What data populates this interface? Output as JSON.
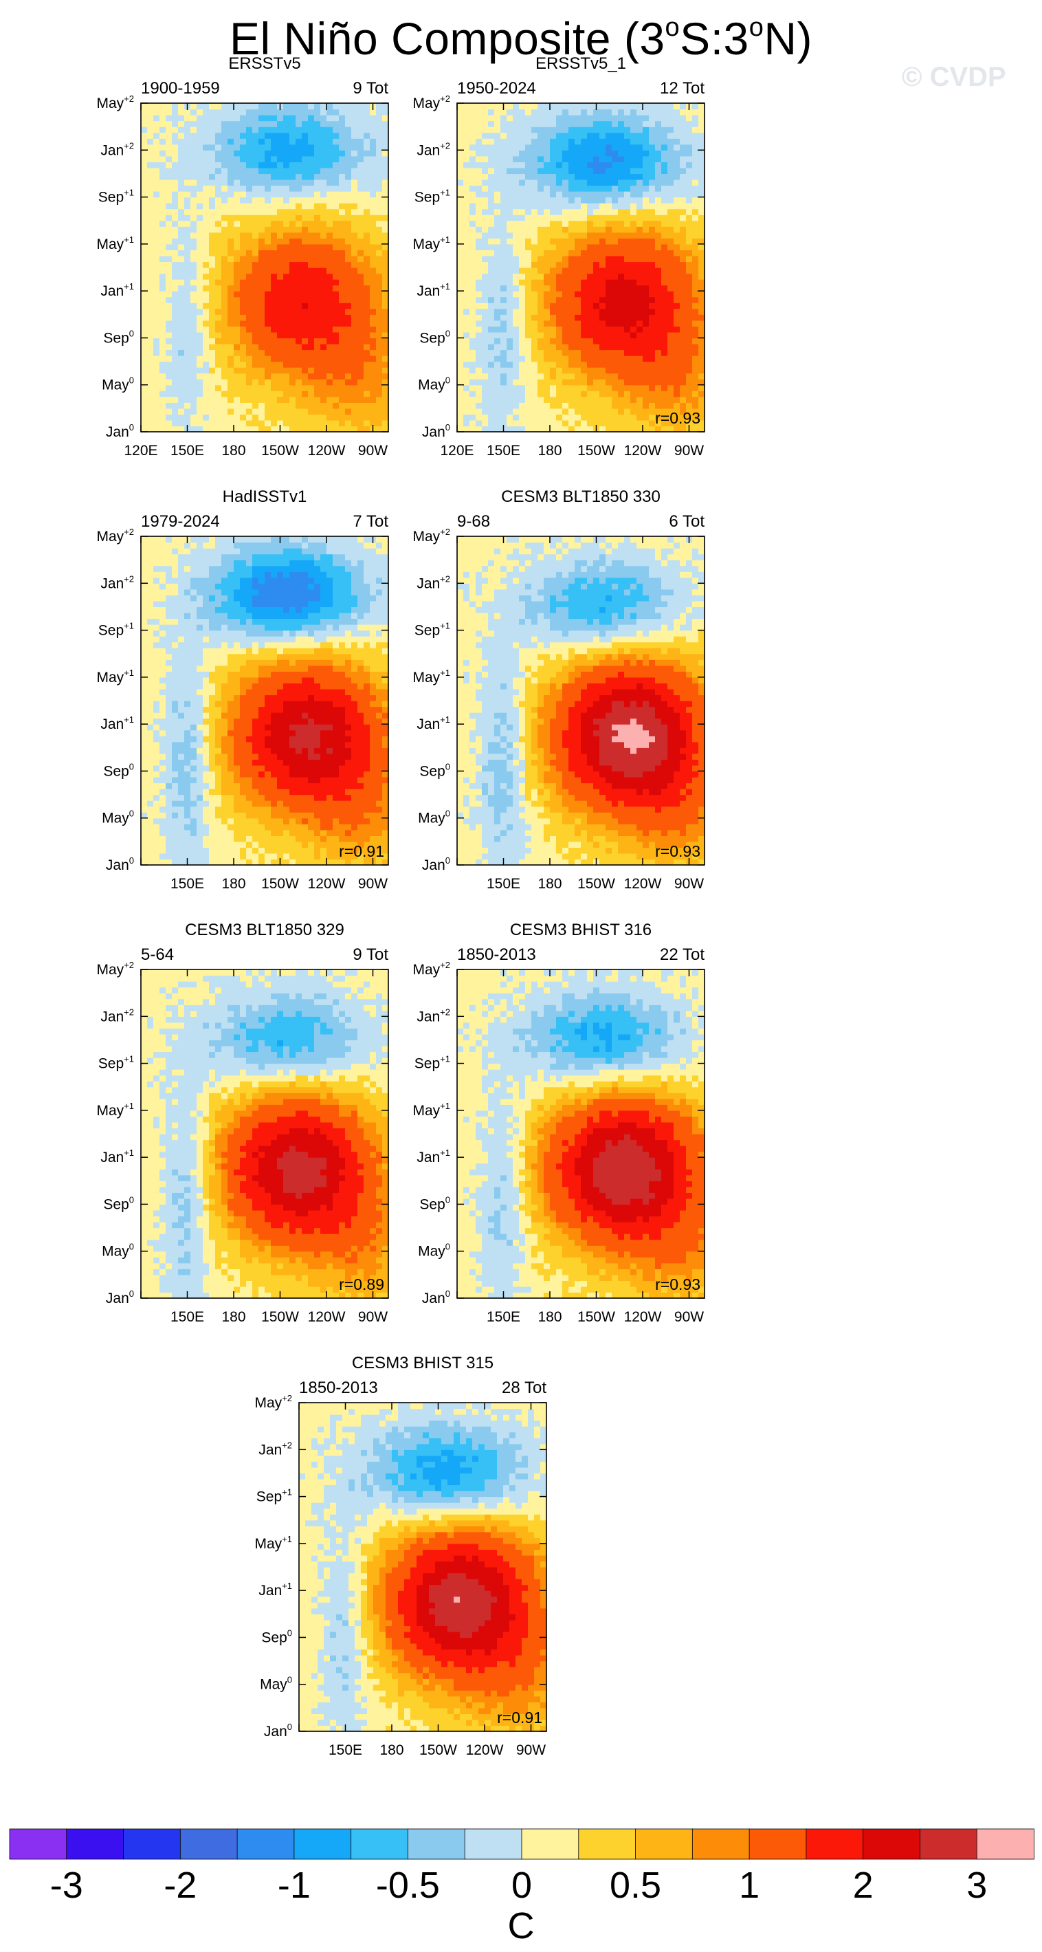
{
  "title_parts": {
    "prefix": "El Niño Composite (3",
    "deg1": "o",
    "mid": "S:3",
    "deg2": "o",
    "suffix": "N)"
  },
  "watermark": "© CVDP",
  "chart_data": {
    "type": "heatmap",
    "title": "El Niño Composite (3°S:3°N)",
    "units": "C",
    "x_axis": {
      "labels": [
        "120E",
        "150E",
        "180",
        "150W",
        "120W",
        "90W"
      ],
      "lon_deg_east": [
        120,
        150,
        180,
        210,
        240,
        270
      ],
      "range": [
        120,
        280
      ]
    },
    "y_axis": {
      "labels": [
        "Jan⁰",
        "May⁰",
        "Sep⁰",
        "Jan⁺¹",
        "May⁺¹",
        "Sep⁺¹",
        "Jan⁺²",
        "May⁺²"
      ],
      "range_months": [
        0,
        28
      ]
    },
    "colorbar": {
      "levels": [
        -3,
        -2.5,
        -2,
        -1.5,
        -1,
        -0.75,
        -0.5,
        -0.25,
        0,
        0.25,
        0.5,
        0.75,
        1,
        1.5,
        2,
        2.5,
        3
      ],
      "tick_labels": [
        "-3",
        "-2",
        "-1",
        "-0.5",
        "0",
        "0.5",
        "1",
        "2",
        "3"
      ],
      "tick_levels": [
        -3,
        -2,
        -1,
        -0.5,
        0,
        0.5,
        1,
        2,
        3
      ],
      "colors": [
        "#8a30f2",
        "#3a10f0",
        "#2436f0",
        "#3f6ce0",
        "#2e8cf0",
        "#16a8f8",
        "#36c0f5",
        "#8acaef",
        "#bfe0f3",
        "#fff39e",
        "#fdd22c",
        "#fdb414",
        "#fd8c08",
        "#fd5a08",
        "#fc1808",
        "#dc0808",
        "#cc2c2c",
        "#fcb0b0"
      ]
    },
    "panels": [
      {
        "name": "ERSSTv5",
        "period": "1900-1959",
        "count": "9 Tot",
        "corr": "",
        "peak": 1.8,
        "peak_lon": 225,
        "peak_month": 11,
        "cold": -1.0,
        "cold_month": 24,
        "wp": -0.4,
        "show_x": true,
        "show_120e": true
      },
      {
        "name": "ERSSTv5_1",
        "period": "1950-2024",
        "count": "12 Tot",
        "corr": "r=0.93",
        "peak": 2.1,
        "peak_lon": 228,
        "peak_month": 11,
        "cold": -1.2,
        "cold_month": 23,
        "wp": -0.5,
        "show_x": true,
        "show_120e": true
      },
      {
        "name": "HadISSTv1",
        "period": "1979-2024",
        "count": "7 Tot",
        "corr": "r=0.91",
        "peak": 2.5,
        "peak_lon": 228,
        "peak_month": 11,
        "cold": -1.4,
        "cold_month": 23,
        "wp": -0.6,
        "show_x": true,
        "show_120e": false
      },
      {
        "name": "CESM3 BLT1850 330",
        "period": "9-68",
        "count": "6 Tot",
        "corr": "r=0.93",
        "peak": 3.0,
        "peak_lon": 232,
        "peak_month": 11,
        "cold": -0.9,
        "cold_month": 22,
        "wp": -0.6,
        "show_x": true,
        "show_120e": false
      },
      {
        "name": "CESM3 BLT1850 329",
        "period": "5-64",
        "count": "9 Tot",
        "corr": "r=0.89",
        "peak": 2.6,
        "peak_lon": 222,
        "peak_month": 11,
        "cold": -0.9,
        "cold_month": 22,
        "wp": -0.6,
        "show_x": true,
        "show_120e": false
      },
      {
        "name": "CESM3 BHIST 316",
        "period": "1850-2013",
        "count": "22 Tot",
        "corr": "r=0.93",
        "peak": 2.8,
        "peak_lon": 228,
        "peak_month": 11,
        "cold": -1.0,
        "cold_month": 22,
        "wp": -0.5,
        "show_x": true,
        "show_120e": false
      },
      {
        "name": "CESM3 BHIST 315",
        "period": "1850-2013",
        "count": "28 Tot",
        "corr": "r=0.91",
        "peak": 2.8,
        "peak_lon": 225,
        "peak_month": 11,
        "cold": -1.1,
        "cold_month": 22,
        "wp": -0.5,
        "show_x": true,
        "show_120e": false
      }
    ]
  }
}
